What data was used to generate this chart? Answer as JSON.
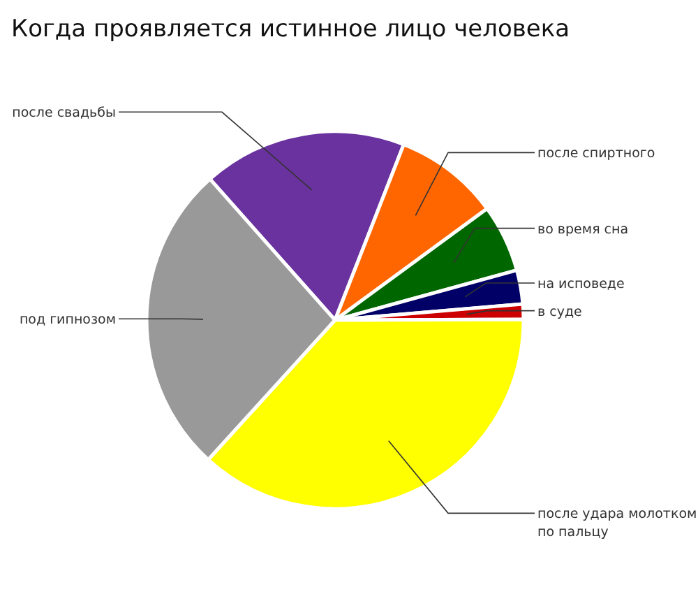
{
  "chart_data": {
    "type": "pie",
    "title": "Когда проявляется истинное лицо человека",
    "categories": [
      "после свадьбы",
      "после спиртного",
      "во время сна",
      "на исповеде",
      "в суде",
      "после удара молотком по пальцу",
      "под гипнозом"
    ],
    "values": [
      17.5,
      9.0,
      5.8,
      2.9,
      1.3,
      36.8,
      26.7
    ],
    "colors": [
      "#6a329f",
      "#ff6600",
      "#006600",
      "#000066",
      "#cc0000",
      "#ffff00",
      "#999999"
    ]
  }
}
